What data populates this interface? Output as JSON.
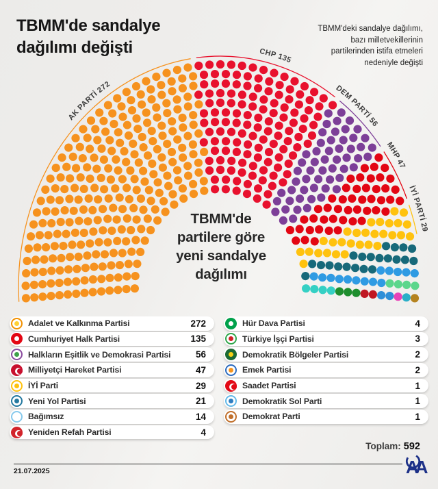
{
  "title": "TBMM'de sandalye dağılımı değişti",
  "subtitle_lines": [
    "TBMM'deki sandalye dağılımı,",
    "bazı milletvekillerinin",
    "partilerinden istifa etmeleri",
    "nedeniyle değişti"
  ],
  "center_label_lines": [
    "TBMM'de",
    "partilere göre",
    "yeni sandalye",
    "dağılımı"
  ],
  "total": {
    "label": "Toplam:",
    "value": "592"
  },
  "footer": {
    "date": "21.07.2025",
    "agency": "AA"
  },
  "chart_data": {
    "type": "parliament-hemicycle",
    "title": "TBMM'de partilere göre yeni sandalye dağılımı",
    "total_seats": 592,
    "legend_split": 8,
    "parties": [
      {
        "name": "Adalet ve Kalkınma Partisi",
        "seats": 272,
        "color": "#F6921E",
        "arc_label": "AK PARTİ 272",
        "label_offset_pct": 30.5,
        "icon": {
          "ring": "#F29100",
          "fill": "#FFFFFF",
          "center": "#FFD034",
          "crescent": false
        }
      },
      {
        "name": "Cumhuriyet Halk Partisi",
        "seats": 135,
        "color": "#E8112D",
        "arc_label": "CHP 135",
        "label_offset_pct": 57.5,
        "icon": {
          "ring": "#E30613",
          "fill": "#E30613",
          "center": "#FFFFFF",
          "crescent": false
        }
      },
      {
        "name": "Halkların Eşitlik ve Demokrasi Partisi",
        "seats": 56,
        "color": "#7D3F98",
        "arc_label": "DEM PARTİ 56",
        "label_offset_pct": 70.5,
        "icon": {
          "ring": "#8A4B9F",
          "fill": "#FFFFFF",
          "center": "#3FA14A",
          "crescent": false
        }
      },
      {
        "name": "Milliyetçi Hareket Partisi",
        "seats": 47,
        "color": "#E30613",
        "arc_label": "MHP 47",
        "label_offset_pct": 79.0,
        "icon": {
          "ring": "#C8102E",
          "fill": "#C8102E",
          "center": null,
          "crescent": true
        }
      },
      {
        "name": "İYİ Parti",
        "seats": 29,
        "color": "#FFC20E",
        "arc_label": "İYİ PARTİ 29",
        "label_offset_pct": 86.8,
        "icon": {
          "ring": "#FFC20E",
          "fill": "#FFFFFF",
          "center": "#FFC20E",
          "crescent": false
        }
      },
      {
        "name": "Yeni Yol Partisi",
        "seats": 21,
        "color": "#17697A",
        "arc_label": null,
        "label_offset_pct": null,
        "icon": {
          "ring": "#2479A0",
          "fill": "#FFFFFF",
          "center": "#2479A0",
          "crescent": false
        }
      },
      {
        "name": "Bağımsız",
        "seats": 14,
        "color": "#2F9BE3",
        "arc_label": null,
        "label_offset_pct": null,
        "icon": {
          "ring": "#86C9EC",
          "fill": "#FFFFFF",
          "center": null,
          "crescent": false
        }
      },
      {
        "name": "Yeniden Refah Partisi",
        "seats": 4,
        "color": "#5CD68C",
        "arc_label": null,
        "label_offset_pct": null,
        "icon": {
          "ring": "#D2232A",
          "fill": "#D2232A",
          "center": null,
          "crescent": true
        }
      },
      {
        "name": "Hür Dava Partisi",
        "seats": 4,
        "color": "#35D0C4",
        "arc_label": null,
        "label_offset_pct": null,
        "icon": {
          "ring": "#00A14B",
          "fill": "#00A14B",
          "center": "#FFFFFF",
          "crescent": false
        }
      },
      {
        "name": "Türkiye İşçi Partisi",
        "seats": 3,
        "color": "#1E8E2E",
        "arc_label": null,
        "label_offset_pct": null,
        "icon": {
          "ring": "#2FA64A",
          "fill": "#FFFFFF",
          "center": "#D21F26",
          "crescent": false
        }
      },
      {
        "name": "Demokratik Bölgeler Partisi",
        "seats": 2,
        "color": "#C01722",
        "arc_label": null,
        "label_offset_pct": null,
        "icon": {
          "ring": "#1C6B35",
          "fill": "#1C6B35",
          "center": "#F7D117",
          "crescent": false
        }
      },
      {
        "name": "Emek Partisi",
        "seats": 2,
        "color": "#2E8FD8",
        "arc_label": null,
        "label_offset_pct": null,
        "icon": {
          "ring": "#2C6BBF",
          "fill": "#FFFFFF",
          "center": "#F7941D",
          "crescent": false
        }
      },
      {
        "name": "Saadet Partisi",
        "seats": 1,
        "color": "#E843B8",
        "arc_label": null,
        "label_offset_pct": null,
        "icon": {
          "ring": "#E30A17",
          "fill": "#E30A17",
          "center": null,
          "crescent": true
        }
      },
      {
        "name": "Demokratik Sol Parti",
        "seats": 1,
        "color": "#2AAFC8",
        "arc_label": null,
        "label_offset_pct": null,
        "icon": {
          "ring": "#63B9E9",
          "fill": "#FFFFFF",
          "center": "#2D7DC1",
          "crescent": false
        }
      },
      {
        "name": "Demokrat Parti",
        "seats": 1,
        "color": "#B5831F",
        "arc_label": null,
        "label_offset_pct": null,
        "icon": {
          "ring": "#C06F2B",
          "fill": "#FFFFFF",
          "center": "#C06F2B",
          "crescent": false
        }
      }
    ]
  }
}
